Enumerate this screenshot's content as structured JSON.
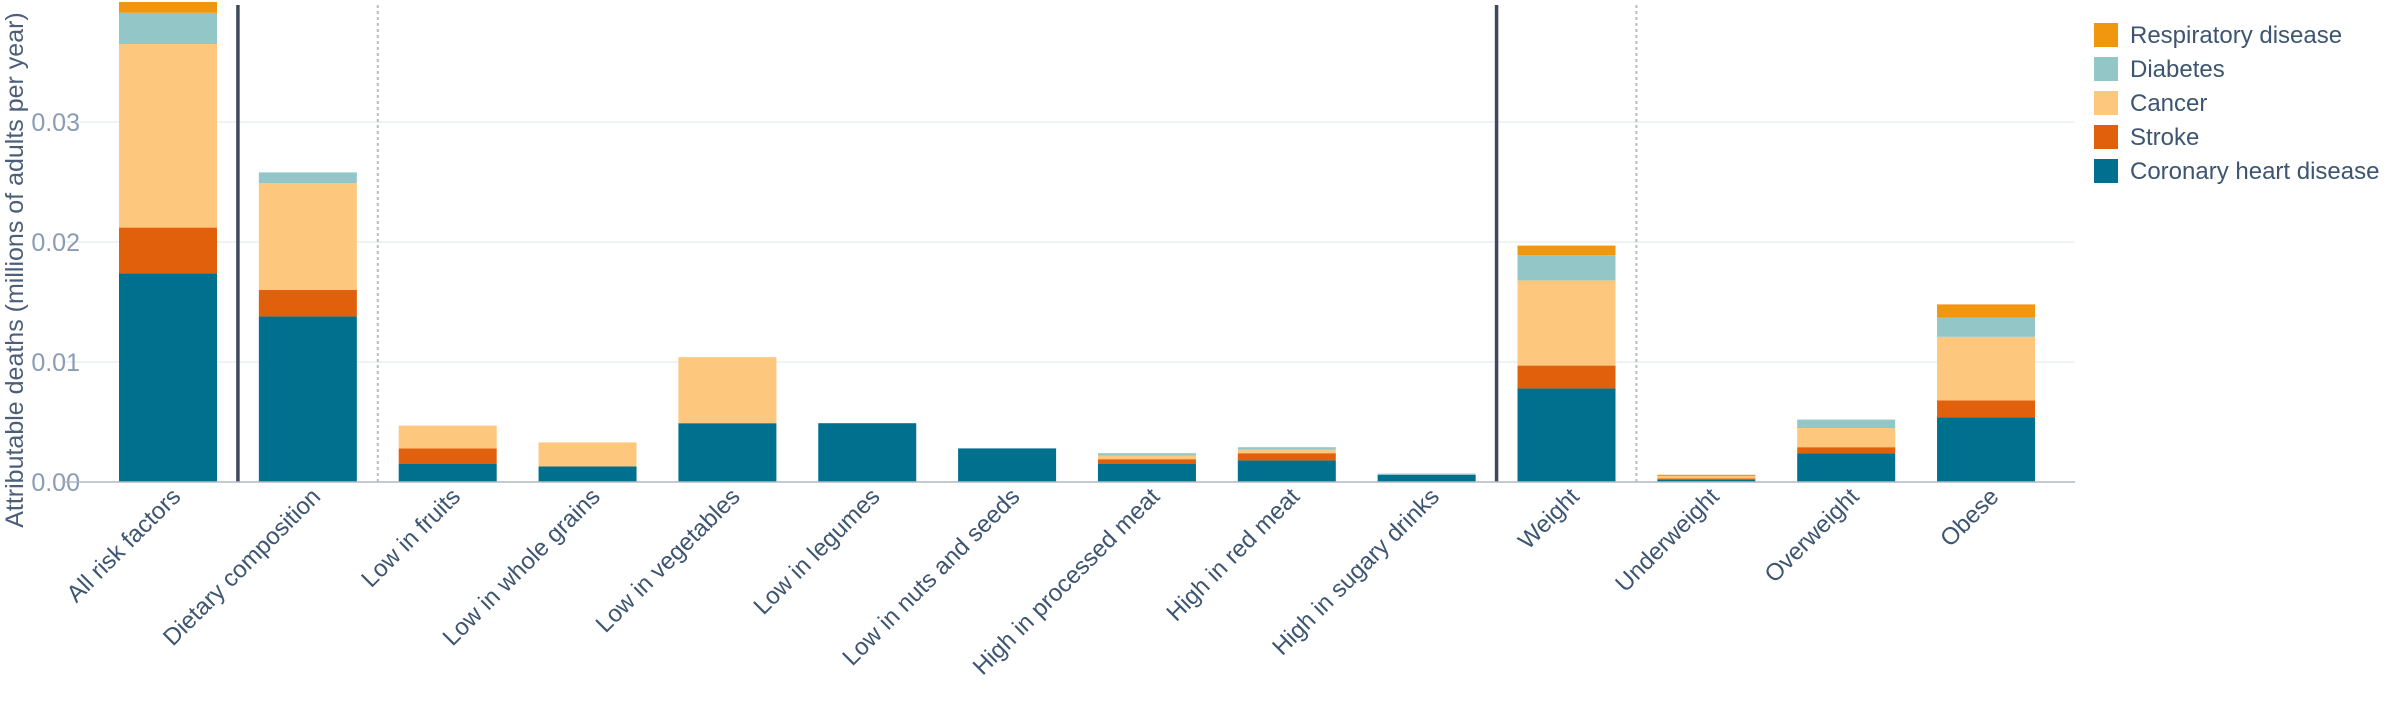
{
  "chart_data": {
    "type": "bar",
    "stacked": true,
    "ylabel": "Attributable deaths (millions of adults per year)",
    "xlabel": "",
    "ylim": [
      0,
      0.04
    ],
    "yticks": [
      "0.00",
      "0.01",
      "0.02",
      "0.03"
    ],
    "grid": true,
    "legend_position": "top-right",
    "categories": [
      "All risk factors",
      "Dietary composition",
      "Low in fruits",
      "Low in whole grains",
      "Low in vegetables",
      "Low in legumes",
      "Low in nuts and seeds",
      "High in processed meat",
      "High in red meat",
      "High in sugary drinks",
      "Weight",
      "Underweight",
      "Overweight",
      "Obese"
    ],
    "series": [
      {
        "name": "Coronary heart disease",
        "color": "#00708f",
        "values": [
          0.0174,
          0.0138,
          0.0015,
          0.0013,
          0.0049,
          0.0049,
          0.0028,
          0.0015,
          0.0018,
          0.0006,
          0.0078,
          0.0002,
          0.0024,
          0.0054
        ]
      },
      {
        "name": "Stroke",
        "color": "#e0600b",
        "values": [
          0.0038,
          0.0022,
          0.0013,
          0.0,
          0.0,
          0.0,
          0.0,
          0.0004,
          0.0006,
          0.0,
          0.0019,
          0.0001,
          0.0005,
          0.0014
        ]
      },
      {
        "name": "Cancer",
        "color": "#fdc87d",
        "values": [
          0.0153,
          0.0089,
          0.0019,
          0.002,
          0.0055,
          0.0,
          0.0,
          0.0003,
          0.0003,
          0.0,
          0.0071,
          0.0002,
          0.0016,
          0.0053
        ]
      },
      {
        "name": "Diabetes",
        "color": "#93c6c7",
        "values": [
          0.0026,
          0.0009,
          0.0,
          0.0,
          0.0,
          0.0,
          0.0,
          0.0002,
          0.0002,
          0.0001,
          0.0021,
          0.0,
          0.0007,
          0.0016
        ]
      },
      {
        "name": "Respiratory disease",
        "color": "#f1960f",
        "values": [
          0.0009,
          0.0,
          0.0,
          0.0,
          0.0,
          0.0,
          0.0,
          0.0,
          0.0,
          0.0,
          0.0008,
          0.0001,
          0.0,
          0.0011
        ]
      }
    ],
    "legend_order": [
      "Respiratory disease",
      "Diabetes",
      "Cancer",
      "Stroke",
      "Coronary heart disease"
    ],
    "separators": [
      {
        "after_index": 0,
        "style": "solid"
      },
      {
        "after_index": 1,
        "style": "dotted"
      },
      {
        "after_index": 9,
        "style": "solid"
      },
      {
        "after_index": 10,
        "style": "dotted"
      }
    ]
  }
}
